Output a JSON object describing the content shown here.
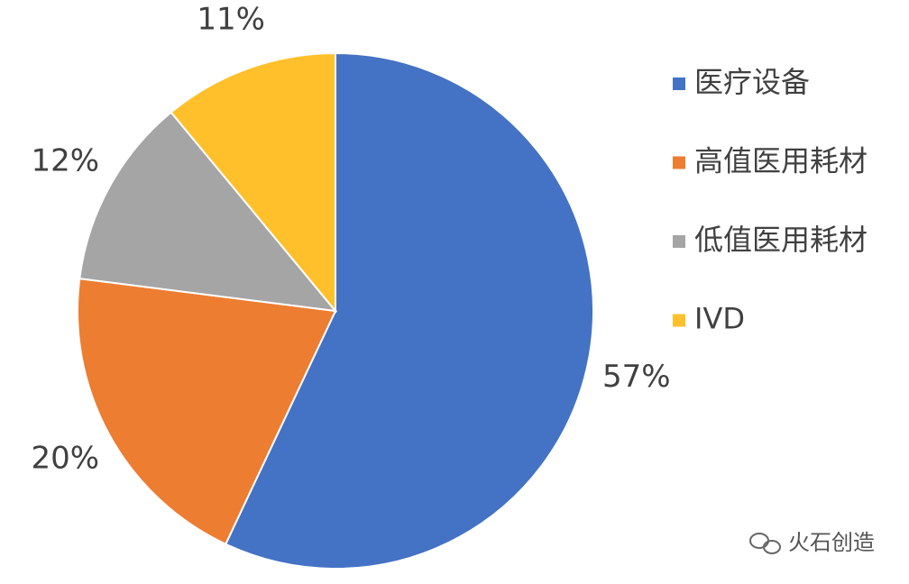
{
  "chart_data": {
    "type": "pie",
    "categories": [
      "医疗设备",
      "高值医用耗材",
      "低值医用耗材",
      "IVD"
    ],
    "values": [
      57,
      20,
      12,
      11
    ],
    "value_labels": [
      "57%",
      "20%",
      "12%",
      "11%"
    ],
    "colors": [
      "#4472c4",
      "#ed7d31",
      "#a5a5a5",
      "#ffc02b"
    ],
    "legend": "right",
    "watermark": "火石创造"
  }
}
